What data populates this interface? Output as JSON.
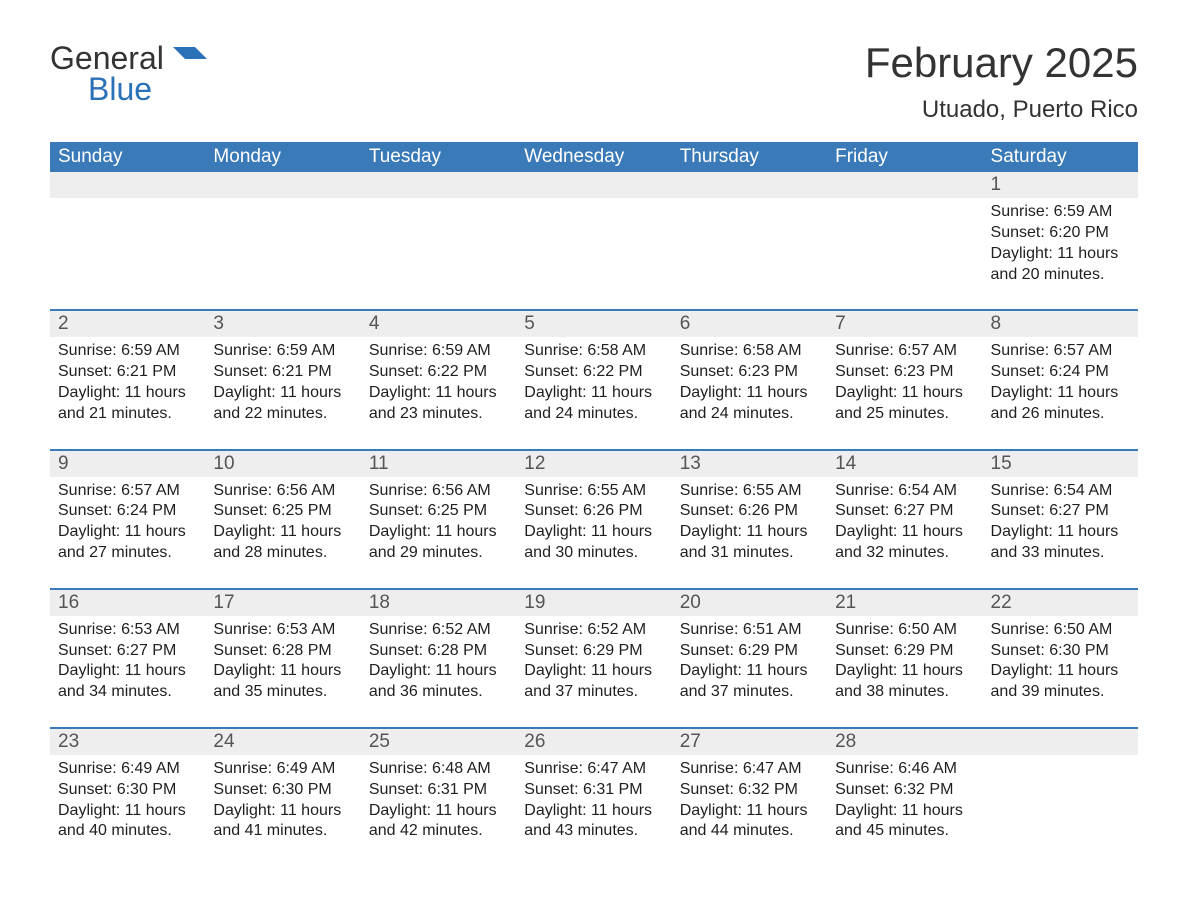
{
  "brand": {
    "text_general": "General",
    "text_blue": "Blue",
    "logo_color": "#2a71b8"
  },
  "title": {
    "month": "February 2025",
    "location": "Utuado, Puerto Rico"
  },
  "colors": {
    "header_bg": "#3a7ab8",
    "header_text": "#ffffff",
    "daynum_bg": "#eeeeee",
    "daynum_text": "#555555",
    "body_text": "#1f1f1f",
    "sep_line": "#3a7ab8"
  },
  "day_headers": [
    "Sunday",
    "Monday",
    "Tuesday",
    "Wednesday",
    "Thursday",
    "Friday",
    "Saturday"
  ],
  "weeks": [
    {
      "days": [
        null,
        null,
        null,
        null,
        null,
        null,
        {
          "num": "1",
          "sunrise": "Sunrise: 6:59 AM",
          "sunset": "Sunset: 6:20 PM",
          "day1": "Daylight: 11 hours",
          "day2": "and 20 minutes."
        }
      ]
    },
    {
      "days": [
        {
          "num": "2",
          "sunrise": "Sunrise: 6:59 AM",
          "sunset": "Sunset: 6:21 PM",
          "day1": "Daylight: 11 hours",
          "day2": "and 21 minutes."
        },
        {
          "num": "3",
          "sunrise": "Sunrise: 6:59 AM",
          "sunset": "Sunset: 6:21 PM",
          "day1": "Daylight: 11 hours",
          "day2": "and 22 minutes."
        },
        {
          "num": "4",
          "sunrise": "Sunrise: 6:59 AM",
          "sunset": "Sunset: 6:22 PM",
          "day1": "Daylight: 11 hours",
          "day2": "and 23 minutes."
        },
        {
          "num": "5",
          "sunrise": "Sunrise: 6:58 AM",
          "sunset": "Sunset: 6:22 PM",
          "day1": "Daylight: 11 hours",
          "day2": "and 24 minutes."
        },
        {
          "num": "6",
          "sunrise": "Sunrise: 6:58 AM",
          "sunset": "Sunset: 6:23 PM",
          "day1": "Daylight: 11 hours",
          "day2": "and 24 minutes."
        },
        {
          "num": "7",
          "sunrise": "Sunrise: 6:57 AM",
          "sunset": "Sunset: 6:23 PM",
          "day1": "Daylight: 11 hours",
          "day2": "and 25 minutes."
        },
        {
          "num": "8",
          "sunrise": "Sunrise: 6:57 AM",
          "sunset": "Sunset: 6:24 PM",
          "day1": "Daylight: 11 hours",
          "day2": "and 26 minutes."
        }
      ]
    },
    {
      "days": [
        {
          "num": "9",
          "sunrise": "Sunrise: 6:57 AM",
          "sunset": "Sunset: 6:24 PM",
          "day1": "Daylight: 11 hours",
          "day2": "and 27 minutes."
        },
        {
          "num": "10",
          "sunrise": "Sunrise: 6:56 AM",
          "sunset": "Sunset: 6:25 PM",
          "day1": "Daylight: 11 hours",
          "day2": "and 28 minutes."
        },
        {
          "num": "11",
          "sunrise": "Sunrise: 6:56 AM",
          "sunset": "Sunset: 6:25 PM",
          "day1": "Daylight: 11 hours",
          "day2": "and 29 minutes."
        },
        {
          "num": "12",
          "sunrise": "Sunrise: 6:55 AM",
          "sunset": "Sunset: 6:26 PM",
          "day1": "Daylight: 11 hours",
          "day2": "and 30 minutes."
        },
        {
          "num": "13",
          "sunrise": "Sunrise: 6:55 AM",
          "sunset": "Sunset: 6:26 PM",
          "day1": "Daylight: 11 hours",
          "day2": "and 31 minutes."
        },
        {
          "num": "14",
          "sunrise": "Sunrise: 6:54 AM",
          "sunset": "Sunset: 6:27 PM",
          "day1": "Daylight: 11 hours",
          "day2": "and 32 minutes."
        },
        {
          "num": "15",
          "sunrise": "Sunrise: 6:54 AM",
          "sunset": "Sunset: 6:27 PM",
          "day1": "Daylight: 11 hours",
          "day2": "and 33 minutes."
        }
      ]
    },
    {
      "days": [
        {
          "num": "16",
          "sunrise": "Sunrise: 6:53 AM",
          "sunset": "Sunset: 6:27 PM",
          "day1": "Daylight: 11 hours",
          "day2": "and 34 minutes."
        },
        {
          "num": "17",
          "sunrise": "Sunrise: 6:53 AM",
          "sunset": "Sunset: 6:28 PM",
          "day1": "Daylight: 11 hours",
          "day2": "and 35 minutes."
        },
        {
          "num": "18",
          "sunrise": "Sunrise: 6:52 AM",
          "sunset": "Sunset: 6:28 PM",
          "day1": "Daylight: 11 hours",
          "day2": "and 36 minutes."
        },
        {
          "num": "19",
          "sunrise": "Sunrise: 6:52 AM",
          "sunset": "Sunset: 6:29 PM",
          "day1": "Daylight: 11 hours",
          "day2": "and 37 minutes."
        },
        {
          "num": "20",
          "sunrise": "Sunrise: 6:51 AM",
          "sunset": "Sunset: 6:29 PM",
          "day1": "Daylight: 11 hours",
          "day2": "and 37 minutes."
        },
        {
          "num": "21",
          "sunrise": "Sunrise: 6:50 AM",
          "sunset": "Sunset: 6:29 PM",
          "day1": "Daylight: 11 hours",
          "day2": "and 38 minutes."
        },
        {
          "num": "22",
          "sunrise": "Sunrise: 6:50 AM",
          "sunset": "Sunset: 6:30 PM",
          "day1": "Daylight: 11 hours",
          "day2": "and 39 minutes."
        }
      ]
    },
    {
      "days": [
        {
          "num": "23",
          "sunrise": "Sunrise: 6:49 AM",
          "sunset": "Sunset: 6:30 PM",
          "day1": "Daylight: 11 hours",
          "day2": "and 40 minutes."
        },
        {
          "num": "24",
          "sunrise": "Sunrise: 6:49 AM",
          "sunset": "Sunset: 6:30 PM",
          "day1": "Daylight: 11 hours",
          "day2": "and 41 minutes."
        },
        {
          "num": "25",
          "sunrise": "Sunrise: 6:48 AM",
          "sunset": "Sunset: 6:31 PM",
          "day1": "Daylight: 11 hours",
          "day2": "and 42 minutes."
        },
        {
          "num": "26",
          "sunrise": "Sunrise: 6:47 AM",
          "sunset": "Sunset: 6:31 PM",
          "day1": "Daylight: 11 hours",
          "day2": "and 43 minutes."
        },
        {
          "num": "27",
          "sunrise": "Sunrise: 6:47 AM",
          "sunset": "Sunset: 6:32 PM",
          "day1": "Daylight: 11 hours",
          "day2": "and 44 minutes."
        },
        {
          "num": "28",
          "sunrise": "Sunrise: 6:46 AM",
          "sunset": "Sunset: 6:32 PM",
          "day1": "Daylight: 11 hours",
          "day2": "and 45 minutes."
        },
        null
      ]
    }
  ]
}
